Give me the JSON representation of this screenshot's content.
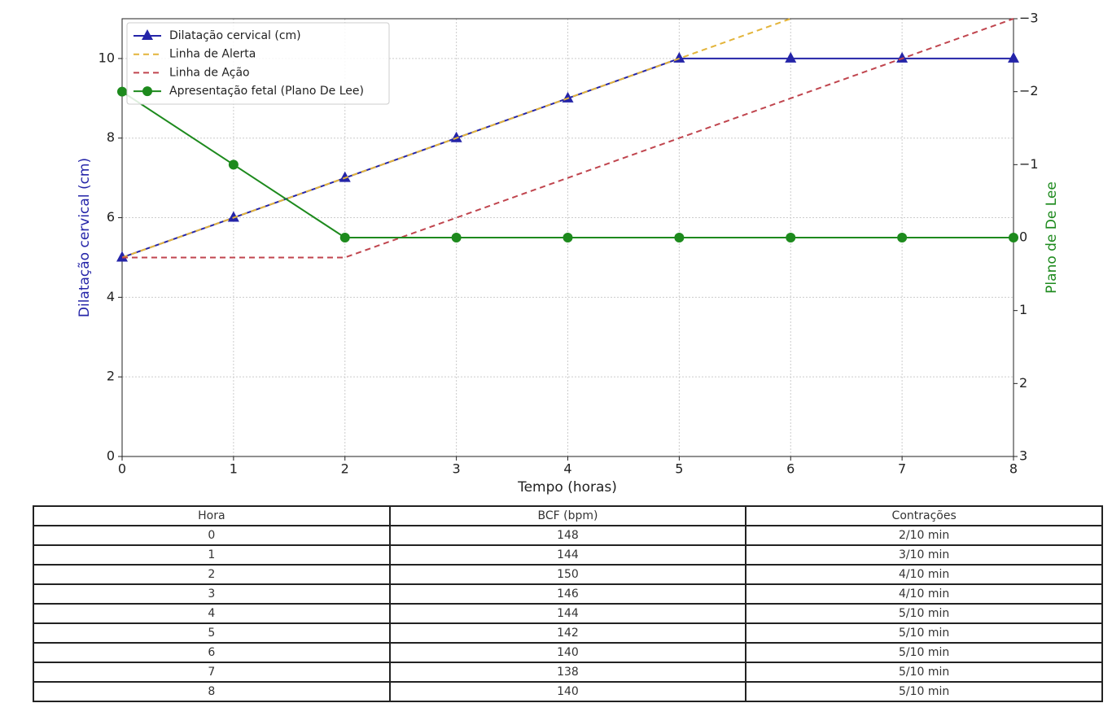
{
  "chart_data": {
    "type": "line",
    "xlabel": "Tempo (horas)",
    "ylabel": "Dilatação cervical (cm)",
    "y2label": "Plano de De Lee",
    "x": [
      0,
      1,
      2,
      3,
      4,
      5,
      6,
      7,
      8
    ],
    "series": [
      {
        "name": "Dilatação cervical (cm)",
        "color": "#2424a8",
        "marker": "triangle",
        "dash": false,
        "values": [
          5,
          6,
          7,
          8,
          9,
          10,
          10,
          10,
          10
        ]
      },
      {
        "name": "Linha de Alerta",
        "color": "#e3b43a",
        "marker": "none",
        "dash": true,
        "values": [
          5,
          6,
          7,
          8,
          9,
          10,
          11,
          null,
          null
        ]
      },
      {
        "name": "Linha de Ação",
        "color": "#c0454e",
        "marker": "none",
        "dash": true,
        "values": [
          5,
          5,
          5,
          6,
          7,
          8,
          9,
          10,
          11
        ]
      },
      {
        "name": "Apresentação fetal (Plano De Lee)",
        "color": "#1d8a1d",
        "marker": "circle",
        "dash": false,
        "axis": "y2",
        "values": [
          -2,
          -1,
          0,
          0,
          0,
          0,
          0,
          0,
          0
        ]
      }
    ],
    "xlim": [
      0,
      8
    ],
    "xticks": [
      0,
      1,
      2,
      3,
      4,
      5,
      6,
      7,
      8
    ],
    "ylim": [
      0,
      11
    ],
    "yticks": [
      0,
      2,
      4,
      6,
      8,
      10
    ],
    "y2lim": [
      3,
      -3
    ],
    "y2ticks": [
      {
        "value": -3,
        "label": "−3"
      },
      {
        "value": -2,
        "label": "−2"
      },
      {
        "value": -1,
        "label": "−1"
      },
      0,
      1,
      2,
      3
    ],
    "grid": true,
    "legend": "upper-left"
  },
  "table": {
    "header": [
      "Hora",
      "BCF (bpm)",
      "Contrações"
    ],
    "rows": [
      [
        0,
        148,
        "2/10 min"
      ],
      [
        1,
        144,
        "3/10 min"
      ],
      [
        2,
        150,
        "4/10 min"
      ],
      [
        3,
        146,
        "4/10 min"
      ],
      [
        4,
        144,
        "5/10 min"
      ],
      [
        5,
        142,
        "5/10 min"
      ],
      [
        6,
        140,
        "5/10 min"
      ],
      [
        7,
        138,
        "5/10 min"
      ],
      [
        8,
        140,
        "5/10 min"
      ]
    ]
  }
}
